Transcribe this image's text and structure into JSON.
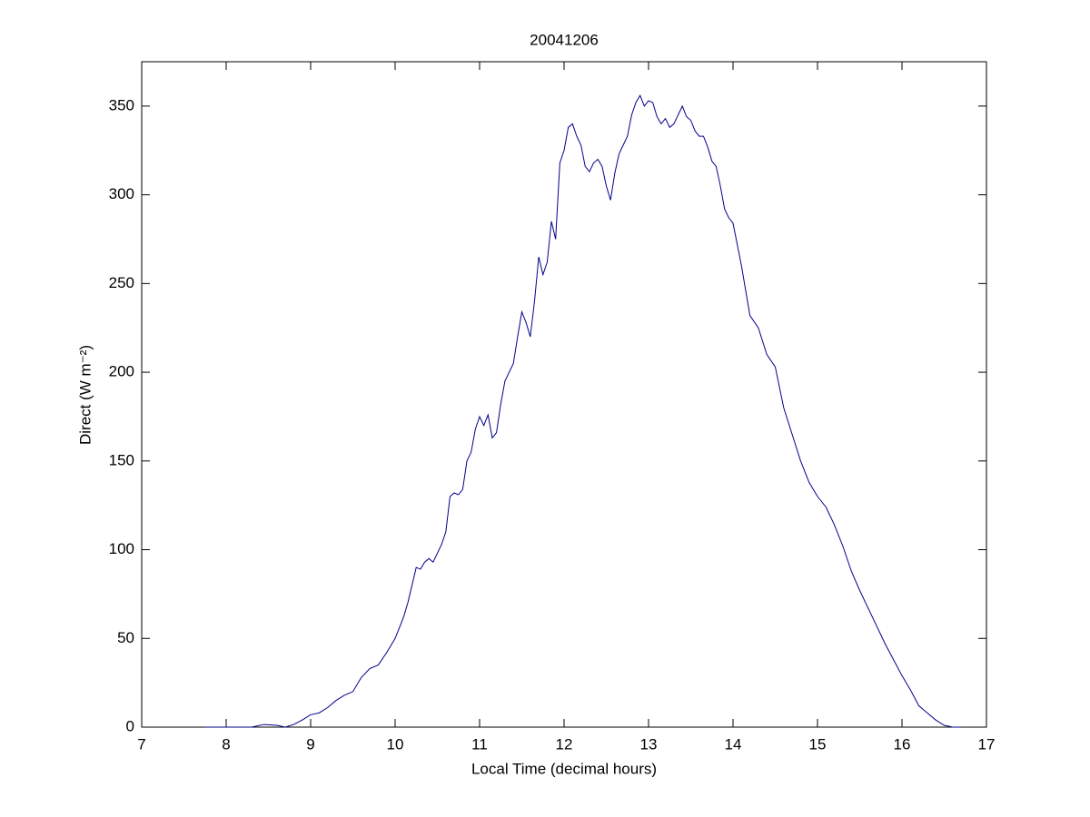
{
  "chart_data": {
    "type": "line",
    "title": "20041206",
    "xlabel": "Local Time (decimal hours)",
    "ylabel": "Direct (W m⁻²)",
    "xlim": [
      7,
      17
    ],
    "xticks": [
      7,
      8,
      9,
      10,
      11,
      12,
      13,
      14,
      15,
      16,
      17
    ],
    "ylim": [
      0,
      375
    ],
    "yticks": [
      0,
      50,
      100,
      150,
      200,
      250,
      300,
      350
    ],
    "grid": false,
    "series": [
      {
        "name": "Direct",
        "color": "#00008b",
        "x": [
          7.75,
          8.0,
          8.3,
          8.45,
          8.6,
          8.7,
          8.8,
          8.9,
          9.0,
          9.1,
          9.2,
          9.3,
          9.4,
          9.5,
          9.6,
          9.7,
          9.8,
          9.9,
          10.0,
          10.05,
          10.1,
          10.15,
          10.2,
          10.25,
          10.3,
          10.35,
          10.4,
          10.45,
          10.5,
          10.55,
          10.6,
          10.65,
          10.7,
          10.75,
          10.8,
          10.85,
          10.9,
          10.95,
          11.0,
          11.05,
          11.1,
          11.15,
          11.2,
          11.25,
          11.3,
          11.35,
          11.4,
          11.45,
          11.5,
          11.55,
          11.6,
          11.65,
          11.7,
          11.75,
          11.8,
          11.85,
          11.9,
          11.95,
          12.0,
          12.05,
          12.1,
          12.15,
          12.2,
          12.25,
          12.3,
          12.35,
          12.4,
          12.45,
          12.5,
          12.55,
          12.6,
          12.65,
          12.7,
          12.75,
          12.8,
          12.85,
          12.9,
          12.95,
          13.0,
          13.05,
          13.1,
          13.15,
          13.2,
          13.25,
          13.3,
          13.35,
          13.4,
          13.45,
          13.5,
          13.55,
          13.6,
          13.65,
          13.7,
          13.75,
          13.8,
          13.85,
          13.9,
          13.95,
          14.0,
          14.1,
          14.2,
          14.3,
          14.4,
          14.5,
          14.6,
          14.7,
          14.8,
          14.9,
          15.0,
          15.1,
          15.2,
          15.3,
          15.4,
          15.5,
          15.6,
          15.7,
          15.8,
          15.9,
          16.0,
          16.1,
          16.2,
          16.3,
          16.4,
          16.5,
          16.6,
          16.7
        ],
        "values": [
          0,
          0,
          0,
          1.5,
          1,
          0,
          1.5,
          4,
          7,
          8,
          11,
          15,
          18,
          20,
          28,
          33,
          35,
          42,
          50,
          56,
          62,
          70,
          80,
          90,
          89,
          93,
          95,
          93,
          98,
          103,
          110,
          130,
          132,
          131,
          134,
          150,
          155,
          168,
          175,
          170,
          176,
          163,
          166,
          182,
          195,
          200,
          205,
          220,
          234,
          228,
          220,
          240,
          265,
          255,
          262,
          285,
          275,
          318,
          325,
          338,
          340,
          333,
          328,
          316,
          313,
          318,
          320,
          316,
          305,
          297,
          312,
          323,
          328,
          333,
          345,
          352,
          356,
          350,
          353,
          352,
          344,
          340,
          343,
          338,
          340,
          345,
          350,
          344,
          342,
          336,
          333,
          333,
          327,
          319,
          316,
          305,
          292,
          287,
          284,
          260,
          232,
          225,
          210,
          203,
          180,
          165,
          150,
          138,
          130,
          124,
          114,
          102,
          88,
          77,
          67,
          57,
          47,
          38,
          29,
          21,
          12,
          8,
          4,
          1,
          0,
          0
        ]
      }
    ]
  }
}
